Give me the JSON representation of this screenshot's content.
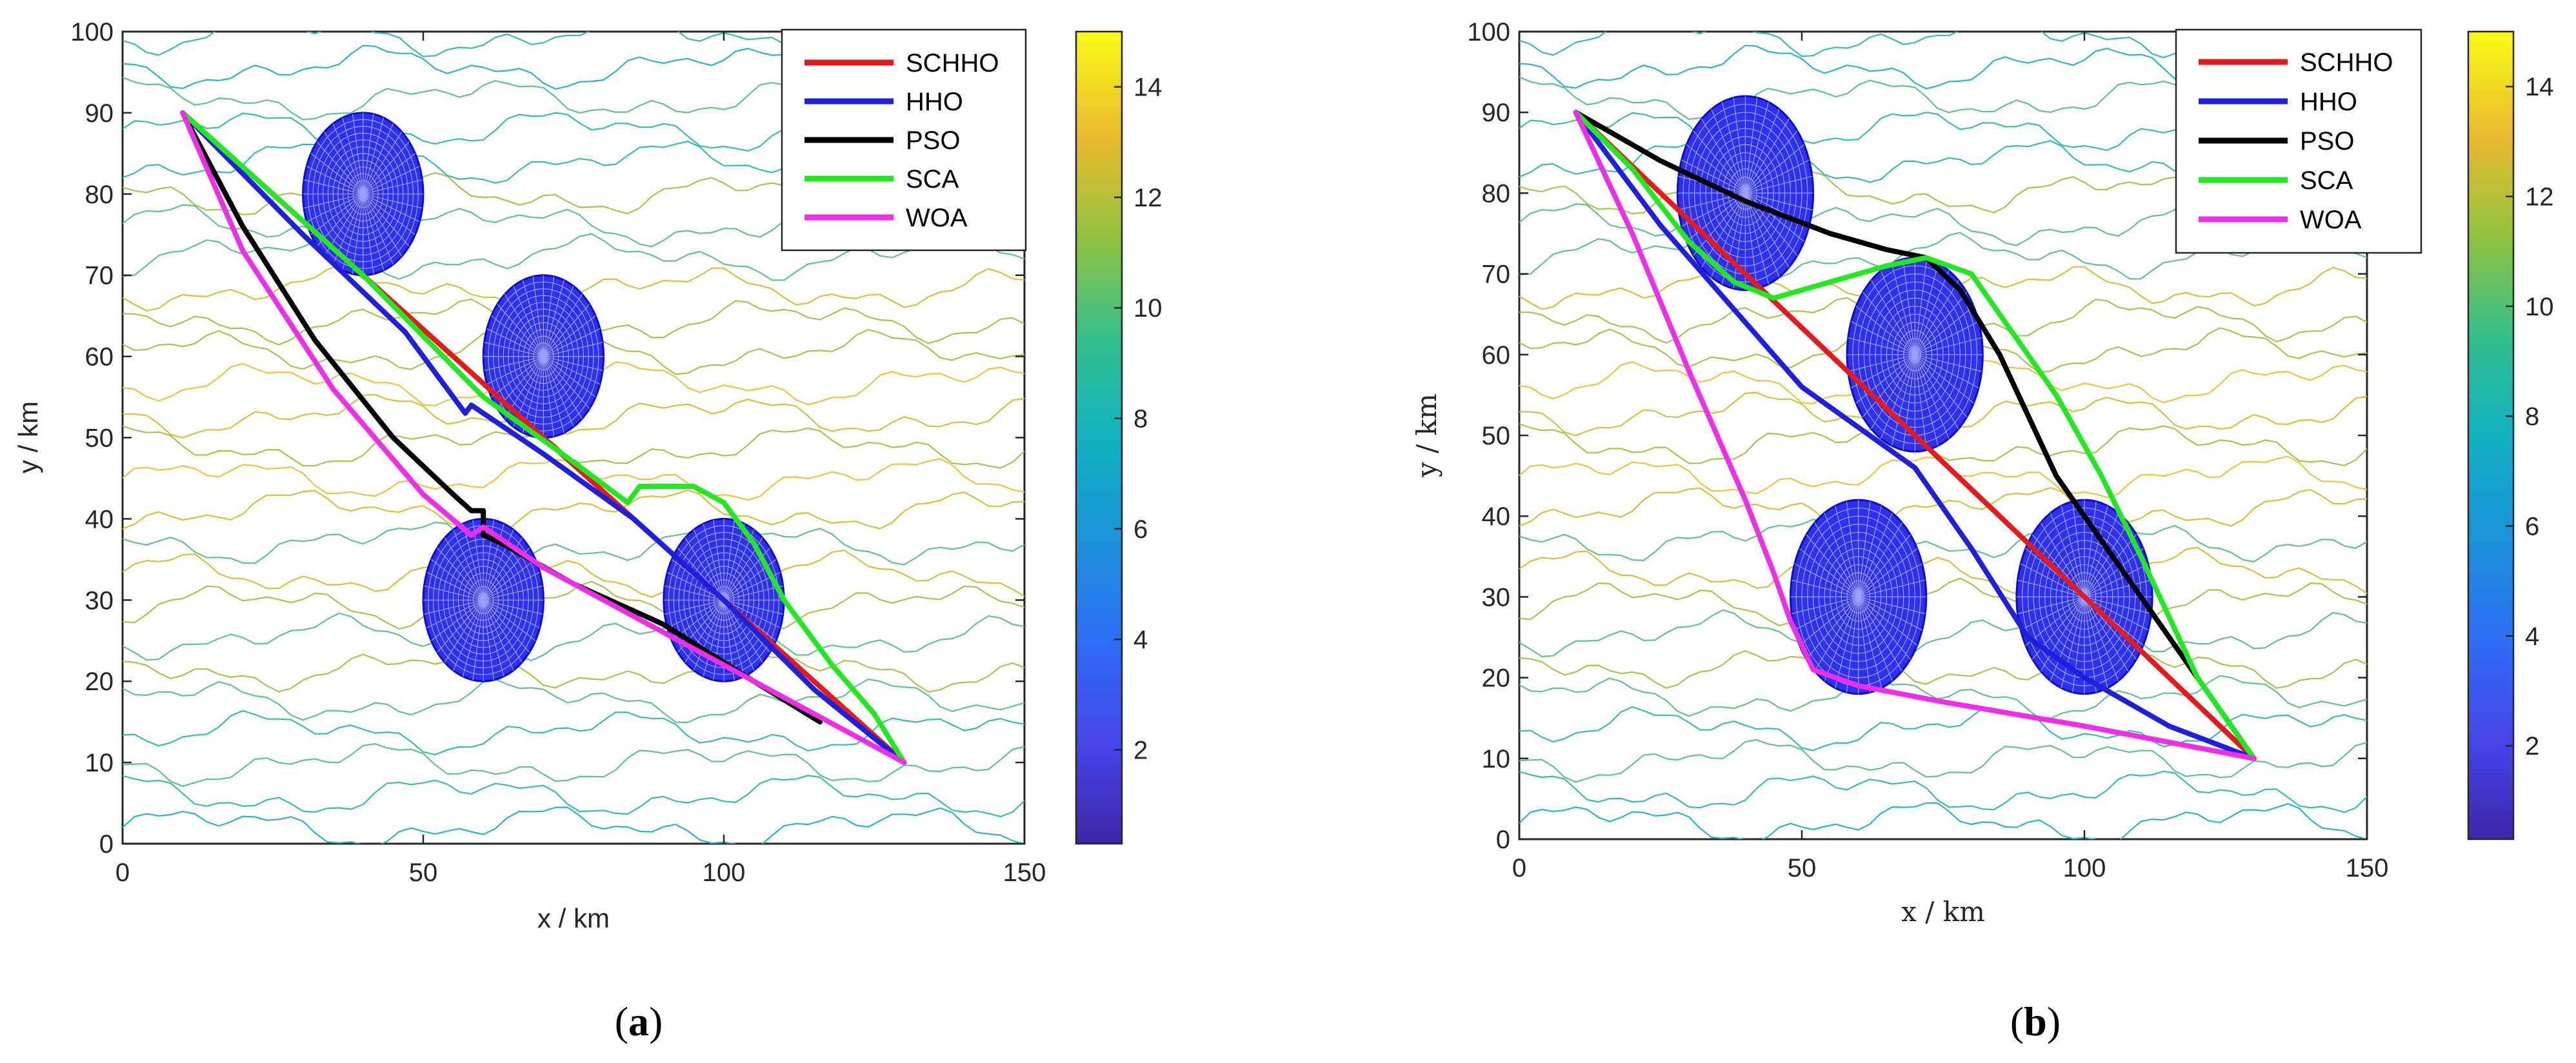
{
  "chart_data": [
    {
      "panel": "a",
      "caption_letter": "a",
      "type": "line",
      "xlabel": "x / km",
      "ylabel": "y / km",
      "xlim": [
        0,
        150
      ],
      "ylim": [
        0,
        100
      ],
      "xticks": [
        0,
        50,
        100,
        150
      ],
      "yticks": [
        0,
        10,
        20,
        30,
        40,
        50,
        60,
        70,
        80,
        90,
        100
      ],
      "colorbar": {
        "range": [
          0.3,
          15
        ],
        "ticks": [
          2,
          4,
          6,
          8,
          10,
          12,
          14
        ]
      },
      "legend_location": "top-right",
      "threats": [
        {
          "cx": 40,
          "cy": 80,
          "r": 10
        },
        {
          "cx": 70,
          "cy": 60,
          "r": 10
        },
        {
          "cx": 60,
          "cy": 30,
          "r": 10
        },
        {
          "cx": 100,
          "cy": 30,
          "r": 10
        }
      ],
      "series": [
        {
          "name": "SCHHO",
          "color": "#e41a1c",
          "x": [
            10,
            40,
            70,
            100,
            130
          ],
          "y": [
            90,
            70,
            50,
            30,
            10
          ]
        },
        {
          "name": "HHO",
          "color": "#1f1fe0",
          "x": [
            10,
            30,
            47,
            57,
            58,
            60,
            70,
            85,
            100,
            115,
            130
          ],
          "y": [
            90,
            75,
            63,
            53,
            54,
            53,
            48,
            40,
            30,
            19,
            10
          ]
        },
        {
          "name": "PSO",
          "color": "#000000",
          "x": [
            10,
            20,
            32,
            45,
            55,
            58,
            60,
            60,
            63,
            75,
            90,
            105,
            116
          ],
          "y": [
            90,
            76,
            62,
            50,
            43,
            41,
            41,
            38,
            37,
            32,
            27,
            20,
            15
          ]
        },
        {
          "name": "SCA",
          "color": "#22e822",
          "x": [
            10,
            40,
            60,
            75,
            84,
            86,
            90,
            92,
            95,
            100,
            105,
            110,
            118,
            125,
            130
          ],
          "y": [
            90,
            70,
            55,
            47,
            42,
            44,
            44,
            44,
            44,
            42,
            37,
            30,
            22,
            16,
            10
          ]
        },
        {
          "name": "WOA",
          "color": "#ee2ee8",
          "x": [
            10,
            20,
            35,
            50,
            58,
            60,
            70,
            85,
            100,
            115,
            130
          ],
          "y": [
            90,
            73,
            56,
            43,
            38,
            39,
            34,
            28,
            22,
            16,
            10
          ]
        }
      ]
    },
    {
      "panel": "b",
      "caption_letter": "b",
      "type": "line",
      "xlabel": "x / km",
      "ylabel": "y / km",
      "xlim": [
        0,
        150
      ],
      "ylim": [
        0,
        100
      ],
      "xticks": [
        0,
        50,
        100,
        150
      ],
      "yticks": [
        0,
        10,
        20,
        30,
        40,
        50,
        60,
        70,
        80,
        90,
        100
      ],
      "colorbar": {
        "range": [
          0.3,
          15
        ],
        "ticks": [
          2,
          4,
          6,
          8,
          10,
          12,
          14
        ]
      },
      "legend_location": "top-right",
      "threats": [
        {
          "cx": 40,
          "cy": 80,
          "r": 12
        },
        {
          "cx": 70,
          "cy": 60,
          "r": 12
        },
        {
          "cx": 60,
          "cy": 30,
          "r": 12
        },
        {
          "cx": 100,
          "cy": 30,
          "r": 12
        }
      ],
      "series": [
        {
          "name": "SCHHO",
          "color": "#e41a1c",
          "x": [
            10,
            40,
            70,
            100,
            130
          ],
          "y": [
            90,
            70,
            50,
            30,
            10
          ]
        },
        {
          "name": "HHO",
          "color": "#1f1fe0",
          "x": [
            10,
            25,
            40,
            50,
            58,
            70,
            80,
            90,
            100,
            115,
            130
          ],
          "y": [
            90,
            76,
            64,
            56,
            52,
            46,
            36,
            25,
            20,
            14,
            10
          ]
        },
        {
          "name": "PSO",
          "color": "#000000",
          "x": [
            10,
            25,
            40,
            55,
            65,
            72,
            78,
            85,
            95,
            105,
            115,
            125,
            130
          ],
          "y": [
            90,
            84,
            79,
            75,
            73,
            72,
            68,
            60,
            45,
            35,
            25,
            15,
            10
          ]
        },
        {
          "name": "SCA",
          "color": "#22e822",
          "x": [
            10,
            20,
            30,
            38,
            45,
            55,
            65,
            72,
            80,
            88,
            95,
            103,
            110,
            120,
            130
          ],
          "y": [
            90,
            83,
            74,
            69,
            67,
            69,
            71,
            72,
            70,
            62,
            55,
            45,
            35,
            20,
            10
          ]
        },
        {
          "name": "WOA",
          "color": "#ee2ee8",
          "x": [
            10,
            20,
            30,
            40,
            45,
            48,
            52,
            60,
            75,
            100,
            130
          ],
          "y": [
            90,
            75,
            58,
            42,
            33,
            27,
            21,
            19,
            17,
            14,
            10
          ]
        }
      ]
    }
  ]
}
